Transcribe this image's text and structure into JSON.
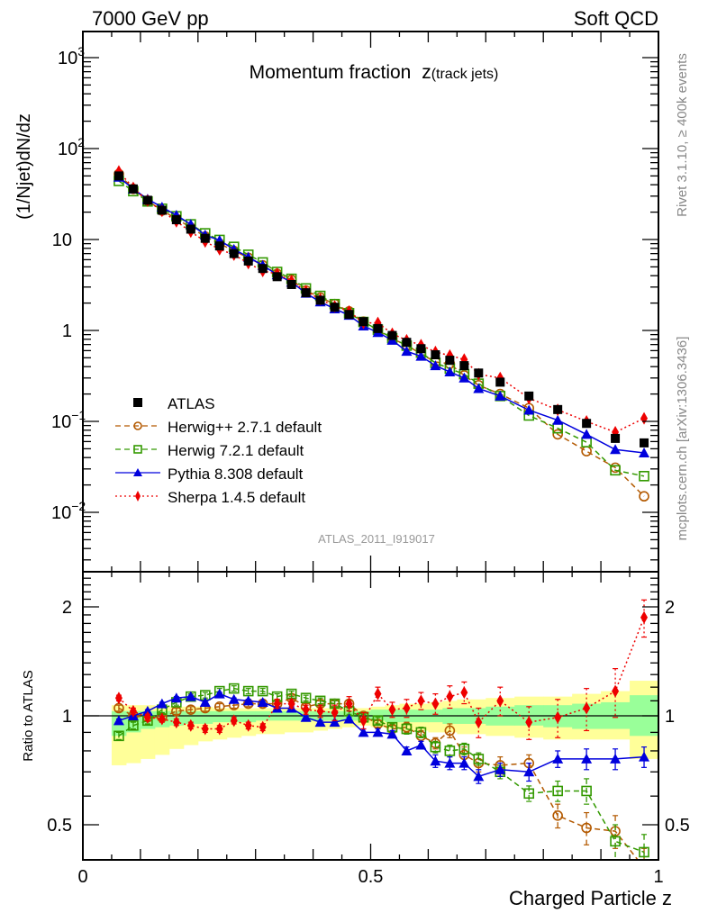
{
  "header": {
    "left": "7000 GeV pp",
    "right": "Soft QCD"
  },
  "side_labels": {
    "rivet": "Rivet 3.1.10, ≥ 400k events",
    "source": "mcplots.cern.ch [arXiv:1306.3436]"
  },
  "chart_data": [
    {
      "type": "scatter",
      "panel": "main",
      "title": "Momentum fraction",
      "title_var": "z",
      "title_sub": "(track jets)",
      "analysis_label": "ATLAS_2011_I919017",
      "ylabel": "(1/Njet)dN/dz",
      "xlabel": "",
      "yscale": "log",
      "ylim": [
        0.0025,
        2000
      ],
      "xlim": [
        0,
        1.02
      ],
      "yticks": [
        {
          "value": 0.01,
          "label": "10",
          "exp": "−2"
        },
        {
          "value": 0.1,
          "label": "10",
          "exp": "−1"
        },
        {
          "value": 1,
          "label": "1",
          "exp": ""
        },
        {
          "value": 10,
          "label": "10",
          "exp": ""
        },
        {
          "value": 100,
          "label": "10",
          "exp": "2"
        },
        {
          "value": 1000,
          "label": "10",
          "exp": "3"
        }
      ],
      "legend_position": "bottom-left",
      "x": [
        0.0625,
        0.0875,
        0.1125,
        0.1375,
        0.1625,
        0.1875,
        0.2125,
        0.2375,
        0.2625,
        0.2875,
        0.3125,
        0.3375,
        0.3625,
        0.3875,
        0.4125,
        0.4375,
        0.4625,
        0.4875,
        0.5125,
        0.5375,
        0.5625,
        0.5875,
        0.6125,
        0.6375,
        0.6625,
        0.6875,
        0.725,
        0.775,
        0.825,
        0.875,
        0.925,
        0.975
      ],
      "series": [
        {
          "name": "ATLAS",
          "color": "#000000",
          "marker": "square-filled",
          "line": "none",
          "values": [
            50,
            36,
            27,
            21,
            16.5,
            13,
            10.3,
            8.5,
            7.0,
            5.8,
            4.8,
            3.9,
            3.2,
            2.6,
            2.15,
            1.8,
            1.5,
            1.25,
            1.05,
            0.88,
            0.74,
            0.63,
            0.54,
            0.47,
            0.41,
            0.34,
            0.27,
            0.19,
            0.135,
            0.095,
            0.065,
            0.058
          ]
        },
        {
          "name": "Herwig++ 2.7.1 default",
          "color": "#b35900",
          "marker": "circle-open",
          "line": "dashed",
          "values": [
            52.5,
            36,
            26.7,
            20.8,
            17.0,
            13.5,
            10.8,
            9.0,
            7.5,
            6.3,
            5.2,
            4.2,
            3.6,
            2.75,
            2.3,
            1.95,
            1.62,
            1.25,
            1.0,
            0.81,
            0.69,
            0.55,
            0.45,
            0.43,
            0.32,
            0.25,
            0.2,
            0.14,
            0.072,
            0.047,
            0.031,
            0.015
          ]
        },
        {
          "name": "Herwig 7.2.1 default",
          "color": "#339900",
          "marker": "square-open",
          "line": "dashed",
          "values": [
            44,
            34,
            26.2,
            21.8,
            18.0,
            14.7,
            11.7,
            9.9,
            8.3,
            6.8,
            5.6,
            4.4,
            3.7,
            2.9,
            2.4,
            1.95,
            1.55,
            1.24,
            1.02,
            0.82,
            0.68,
            0.57,
            0.44,
            0.38,
            0.33,
            0.26,
            0.19,
            0.116,
            0.084,
            0.059,
            0.029,
            0.025
          ]
        },
        {
          "name": "Pythia 8.308 default",
          "color": "#0000dd",
          "marker": "triangle-filled",
          "line": "solid",
          "values": [
            48.5,
            36,
            27.8,
            22.7,
            18.5,
            14.7,
            11.2,
            9.8,
            7.8,
            6.4,
            5.2,
            4.1,
            3.4,
            2.57,
            2.06,
            1.73,
            1.47,
            1.12,
            0.95,
            0.78,
            0.59,
            0.52,
            0.41,
            0.35,
            0.3,
            0.23,
            0.19,
            0.133,
            0.103,
            0.072,
            0.049,
            0.045
          ]
        },
        {
          "name": "Sherpa 1.4.5 default",
          "color": "#ee0000",
          "marker": "diamond-filled",
          "line": "dotted",
          "values": [
            56,
            37,
            26.7,
            20.6,
            15.8,
            12.2,
            9.5,
            7.8,
            6.8,
            5.5,
            4.5,
            4.2,
            3.5,
            2.7,
            2.2,
            1.84,
            1.62,
            1.21,
            1.21,
            0.92,
            0.78,
            0.69,
            0.58,
            0.53,
            0.48,
            0.33,
            0.3,
            0.18,
            0.134,
            0.1,
            0.076,
            0.108
          ]
        }
      ]
    },
    {
      "type": "scatter",
      "panel": "ratio",
      "ylabel": "Ratio to ATLAS",
      "xlabel": "Charged Particle z",
      "yscale": "log",
      "ylim": [
        0.41,
        2.45
      ],
      "xlim": [
        0,
        1.02
      ],
      "yticks": [
        0.5,
        1,
        2
      ],
      "xticks": [
        0,
        0.5,
        1
      ],
      "reference_line": 1,
      "x": [
        0.0625,
        0.0875,
        0.1125,
        0.1375,
        0.1625,
        0.1875,
        0.2125,
        0.2375,
        0.2625,
        0.2875,
        0.3125,
        0.3375,
        0.3625,
        0.3875,
        0.4125,
        0.4375,
        0.4625,
        0.4875,
        0.5125,
        0.5375,
        0.5625,
        0.5875,
        0.6125,
        0.6375,
        0.6625,
        0.6875,
        0.725,
        0.775,
        0.825,
        0.875,
        0.925,
        0.975
      ],
      "bin_edges": [
        0.05,
        0.075,
        0.1,
        0.125,
        0.15,
        0.175,
        0.2,
        0.225,
        0.25,
        0.275,
        0.3,
        0.325,
        0.35,
        0.375,
        0.4,
        0.425,
        0.45,
        0.475,
        0.5,
        0.525,
        0.55,
        0.575,
        0.6,
        0.625,
        0.65,
        0.675,
        0.7,
        0.75,
        0.8,
        0.85,
        0.9,
        0.95,
        1.0
      ],
      "bands": {
        "stat_color": "#99ff99",
        "total_color": "#ffff99",
        "stat_lo": [
          0.88,
          0.9,
          0.92,
          0.93,
          0.94,
          0.95,
          0.95,
          0.96,
          0.96,
          0.96,
          0.97,
          0.97,
          0.97,
          0.97,
          0.97,
          0.97,
          0.97,
          0.97,
          0.97,
          0.96,
          0.96,
          0.96,
          0.96,
          0.95,
          0.95,
          0.95,
          0.94,
          0.94,
          0.93,
          0.92,
          0.92,
          0.88
        ],
        "stat_hi": [
          1.03,
          1.03,
          1.03,
          1.03,
          1.03,
          1.03,
          1.03,
          1.03,
          1.03,
          1.03,
          1.03,
          1.03,
          1.03,
          1.03,
          1.03,
          1.03,
          1.03,
          1.03,
          1.04,
          1.04,
          1.04,
          1.04,
          1.04,
          1.05,
          1.05,
          1.05,
          1.06,
          1.07,
          1.07,
          1.08,
          1.09,
          1.14
        ],
        "total_lo": [
          0.73,
          0.74,
          0.76,
          0.78,
          0.81,
          0.83,
          0.85,
          0.86,
          0.87,
          0.88,
          0.89,
          0.89,
          0.9,
          0.9,
          0.91,
          0.92,
          0.93,
          0.94,
          0.93,
          0.92,
          0.91,
          0.91,
          0.9,
          0.9,
          0.89,
          0.89,
          0.88,
          0.87,
          0.86,
          0.86,
          0.86,
          0.76
        ],
        "total_hi": [
          1.07,
          1.07,
          1.07,
          1.06,
          1.06,
          1.06,
          1.06,
          1.05,
          1.05,
          1.05,
          1.05,
          1.05,
          1.05,
          1.05,
          1.05,
          1.05,
          1.05,
          1.05,
          1.06,
          1.07,
          1.08,
          1.08,
          1.09,
          1.1,
          1.11,
          1.11,
          1.12,
          1.13,
          1.13,
          1.15,
          1.17,
          1.25
        ]
      },
      "series": [
        {
          "name": "Herwig++ 2.7.1 default",
          "color": "#b35900",
          "marker": "circle-open",
          "line": "dashed",
          "values": [
            1.05,
            1.0,
            0.99,
            0.99,
            1.03,
            1.04,
            1.05,
            1.06,
            1.07,
            1.08,
            1.08,
            1.08,
            1.12,
            1.06,
            1.08,
            1.08,
            1.08,
            1.0,
            0.95,
            0.92,
            0.93,
            0.88,
            0.84,
            0.91,
            0.78,
            0.74,
            0.73,
            0.74,
            0.53,
            0.49,
            0.48,
            0.38
          ],
          "errors": [
            0.02,
            0.02,
            0.02,
            0.02,
            0.02,
            0.02,
            0.02,
            0.02,
            0.02,
            0.02,
            0.02,
            0.02,
            0.02,
            0.02,
            0.02,
            0.02,
            0.02,
            0.02,
            0.02,
            0.02,
            0.03,
            0.03,
            0.03,
            0.04,
            0.04,
            0.04,
            0.04,
            0.04,
            0.04,
            0.05,
            0.05,
            0.05
          ]
        },
        {
          "name": "Herwig 7.2.1 default",
          "color": "#339900",
          "marker": "square-open",
          "line": "dashed",
          "values": [
            0.88,
            0.94,
            0.97,
            1.04,
            1.09,
            1.13,
            1.14,
            1.17,
            1.19,
            1.17,
            1.17,
            1.13,
            1.15,
            1.12,
            1.1,
            1.08,
            1.03,
            0.99,
            0.97,
            0.93,
            0.92,
            0.9,
            0.82,
            0.8,
            0.81,
            0.76,
            0.7,
            0.61,
            0.62,
            0.62,
            0.45,
            0.42
          ],
          "errors": [
            0.02,
            0.02,
            0.02,
            0.02,
            0.02,
            0.02,
            0.02,
            0.02,
            0.02,
            0.02,
            0.02,
            0.02,
            0.02,
            0.02,
            0.02,
            0.02,
            0.02,
            0.02,
            0.02,
            0.02,
            0.03,
            0.03,
            0.03,
            0.03,
            0.03,
            0.03,
            0.03,
            0.03,
            0.04,
            0.05,
            0.05,
            0.05
          ]
        },
        {
          "name": "Pythia 8.308 default",
          "color": "#0000dd",
          "marker": "triangle-filled",
          "line": "solid",
          "values": [
            0.97,
            1.0,
            1.03,
            1.08,
            1.12,
            1.13,
            1.09,
            1.15,
            1.11,
            1.1,
            1.09,
            1.05,
            1.05,
            0.99,
            0.96,
            0.96,
            0.98,
            0.9,
            0.9,
            0.89,
            0.8,
            0.83,
            0.75,
            0.74,
            0.74,
            0.68,
            0.71,
            0.7,
            0.76,
            0.76,
            0.76,
            0.77
          ],
          "errors": [
            0.01,
            0.01,
            0.01,
            0.01,
            0.01,
            0.01,
            0.01,
            0.01,
            0.01,
            0.01,
            0.01,
            0.01,
            0.01,
            0.01,
            0.01,
            0.01,
            0.01,
            0.02,
            0.02,
            0.02,
            0.02,
            0.02,
            0.03,
            0.03,
            0.03,
            0.03,
            0.03,
            0.04,
            0.04,
            0.05,
            0.05,
            0.05
          ]
        },
        {
          "name": "Sherpa 1.4.5 default",
          "color": "#ee0000",
          "marker": "diamond-filled",
          "line": "dotted",
          "values": [
            1.12,
            1.03,
            0.99,
            0.98,
            0.96,
            0.94,
            0.92,
            0.92,
            0.97,
            0.94,
            0.93,
            1.08,
            1.08,
            1.04,
            1.03,
            1.02,
            1.08,
            0.97,
            1.15,
            1.04,
            1.05,
            1.1,
            1.08,
            1.13,
            1.16,
            0.96,
            1.1,
            0.96,
            0.99,
            1.05,
            1.17,
            1.87
          ],
          "errors": [
            0.02,
            0.02,
            0.02,
            0.02,
            0.02,
            0.02,
            0.02,
            0.02,
            0.02,
            0.02,
            0.02,
            0.03,
            0.03,
            0.03,
            0.04,
            0.05,
            0.05,
            0.05,
            0.05,
            0.05,
            0.06,
            0.06,
            0.07,
            0.08,
            0.08,
            0.09,
            0.1,
            0.1,
            0.12,
            0.14,
            0.18,
            0.22
          ]
        }
      ]
    }
  ]
}
